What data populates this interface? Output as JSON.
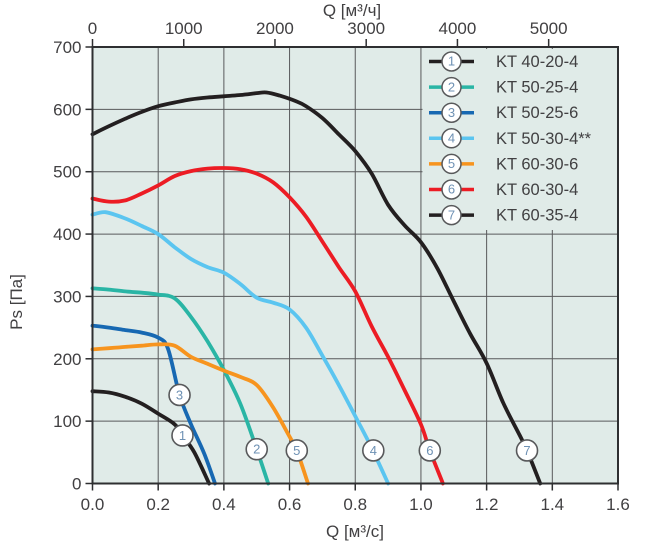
{
  "chart_data": {
    "type": "line",
    "title": "",
    "grid": true,
    "legend_position": "top-right",
    "x_axis_bottom": {
      "label": "Q [м³/с]",
      "range": [
        0,
        1.6
      ],
      "ticks": [
        0,
        0.2,
        0.4,
        0.6,
        0.8,
        1.0,
        1.2,
        1.4,
        1.6
      ],
      "tick_labels": [
        "0.0",
        "0.2",
        "0.4",
        "0.6",
        "0.8",
        "1.0",
        "1.2",
        "1.4",
        "1.6"
      ]
    },
    "x_axis_top": {
      "label": "Q [м³/ч]",
      "unit_conversion_m3h_per_m3s": 3600,
      "ticks": [
        0,
        1000,
        2000,
        3000,
        4000,
        5000
      ],
      "tick_labels": [
        "0",
        "1000",
        "2000",
        "3000",
        "4000",
        "5000"
      ]
    },
    "y_axis": {
      "label": "Ps [Па]",
      "range": [
        0,
        700
      ],
      "ticks": [
        0,
        100,
        200,
        300,
        400,
        500,
        600,
        700
      ],
      "tick_labels": [
        "0",
        "100",
        "200",
        "300",
        "400",
        "500",
        "600",
        "700"
      ]
    },
    "series": [
      {
        "number": "1",
        "name": "KT 40-20-4",
        "color": "#231f20",
        "points": [
          [
            0,
            148
          ],
          [
            0.05,
            146
          ],
          [
            0.1,
            139
          ],
          [
            0.15,
            128
          ],
          [
            0.2,
            112
          ],
          [
            0.25,
            95
          ],
          [
            0.274,
            77
          ],
          [
            0.31,
            50
          ],
          [
            0.355,
            0
          ]
        ],
        "marker": {
          "x": 0.274,
          "y": 77
        }
      },
      {
        "number": "2",
        "name": "KT 50-25-4",
        "color": "#2ab5a5",
        "points": [
          [
            0,
            313
          ],
          [
            0.05,
            311
          ],
          [
            0.1,
            308
          ],
          [
            0.15,
            306
          ],
          [
            0.2,
            303
          ],
          [
            0.25,
            297
          ],
          [
            0.3,
            267
          ],
          [
            0.35,
            228
          ],
          [
            0.4,
            182
          ],
          [
            0.45,
            128
          ],
          [
            0.5,
            55
          ],
          [
            0.535,
            0
          ]
        ],
        "marker": {
          "x": 0.5,
          "y": 55
        }
      },
      {
        "number": "3",
        "name": "KT 50-25-6",
        "color": "#1768b2",
        "points": [
          [
            0,
            253
          ],
          [
            0.05,
            250
          ],
          [
            0.1,
            246
          ],
          [
            0.15,
            242
          ],
          [
            0.2,
            234
          ],
          [
            0.23,
            216
          ],
          [
            0.265,
            142
          ],
          [
            0.3,
            95
          ],
          [
            0.34,
            48
          ],
          [
            0.373,
            0
          ]
        ],
        "marker": {
          "x": 0.265,
          "y": 142
        }
      },
      {
        "number": "4",
        "name": "KT 50-30-4**",
        "color": "#5bc5f0",
        "points": [
          [
            0,
            431
          ],
          [
            0.04,
            435
          ],
          [
            0.1,
            425
          ],
          [
            0.15,
            413
          ],
          [
            0.2,
            400
          ],
          [
            0.25,
            379
          ],
          [
            0.3,
            360
          ],
          [
            0.35,
            347
          ],
          [
            0.4,
            338
          ],
          [
            0.45,
            320
          ],
          [
            0.5,
            298
          ],
          [
            0.55,
            290
          ],
          [
            0.6,
            279
          ],
          [
            0.65,
            250
          ],
          [
            0.7,
            205
          ],
          [
            0.75,
            158
          ],
          [
            0.8,
            108
          ],
          [
            0.85,
            57
          ],
          [
            0.9,
            0
          ]
        ],
        "marker": {
          "x": 0.855,
          "y": 53
        }
      },
      {
        "number": "5",
        "name": "KT 60-30-6",
        "color": "#f7941e",
        "points": [
          [
            0,
            215
          ],
          [
            0.05,
            217
          ],
          [
            0.1,
            219
          ],
          [
            0.15,
            221
          ],
          [
            0.2,
            223
          ],
          [
            0.25,
            221
          ],
          [
            0.3,
            203
          ],
          [
            0.35,
            192
          ],
          [
            0.4,
            181
          ],
          [
            0.45,
            171
          ],
          [
            0.5,
            158
          ],
          [
            0.55,
            122
          ],
          [
            0.6,
            75
          ],
          [
            0.622,
            53
          ],
          [
            0.656,
            0
          ]
        ],
        "marker": {
          "x": 0.622,
          "y": 53
        }
      },
      {
        "number": "6",
        "name": "KT 60-30-4",
        "color": "#ec1c24",
        "points": [
          [
            0,
            457
          ],
          [
            0.05,
            452
          ],
          [
            0.1,
            454
          ],
          [
            0.15,
            465
          ],
          [
            0.2,
            478
          ],
          [
            0.25,
            493
          ],
          [
            0.3,
            501
          ],
          [
            0.35,
            505
          ],
          [
            0.4,
            506
          ],
          [
            0.45,
            504
          ],
          [
            0.5,
            497
          ],
          [
            0.55,
            483
          ],
          [
            0.6,
            459
          ],
          [
            0.65,
            428
          ],
          [
            0.7,
            388
          ],
          [
            0.75,
            347
          ],
          [
            0.8,
            308
          ],
          [
            0.85,
            252
          ],
          [
            0.9,
            203
          ],
          [
            0.95,
            150
          ],
          [
            1.0,
            95
          ],
          [
            1.027,
            53
          ],
          [
            1.067,
            0
          ]
        ],
        "marker": {
          "x": 1.027,
          "y": 53
        }
      },
      {
        "number": "7",
        "name": "KT 60-35-4",
        "color": "#231f20",
        "points": [
          [
            0,
            560
          ],
          [
            0.05,
            573
          ],
          [
            0.1,
            585
          ],
          [
            0.15,
            596
          ],
          [
            0.2,
            605
          ],
          [
            0.25,
            611
          ],
          [
            0.3,
            616
          ],
          [
            0.35,
            619
          ],
          [
            0.4,
            621
          ],
          [
            0.45,
            623
          ],
          [
            0.5,
            626
          ],
          [
            0.53,
            627
          ],
          [
            0.57,
            622
          ],
          [
            0.62,
            613
          ],
          [
            0.65,
            605
          ],
          [
            0.7,
            586
          ],
          [
            0.75,
            560
          ],
          [
            0.8,
            533
          ],
          [
            0.85,
            497
          ],
          [
            0.9,
            447
          ],
          [
            0.95,
            414
          ],
          [
            1.0,
            387
          ],
          [
            1.05,
            345
          ],
          [
            1.1,
            292
          ],
          [
            1.15,
            240
          ],
          [
            1.2,
            193
          ],
          [
            1.25,
            130
          ],
          [
            1.3,
            78
          ],
          [
            1.323,
            53
          ],
          [
            1.363,
            0
          ]
        ],
        "marker": {
          "x": 1.323,
          "y": 53
        }
      }
    ]
  },
  "styles": {
    "plot_background": "#e0ebe8",
    "page_background": "#ffffff",
    "grid_color": "#58595b",
    "border_color": "#2e2f31",
    "text_color": "#414042",
    "marker_fill": "#ffffff",
    "marker_stroke": "#58595b",
    "marker_number_color": "#6e91b4"
  }
}
